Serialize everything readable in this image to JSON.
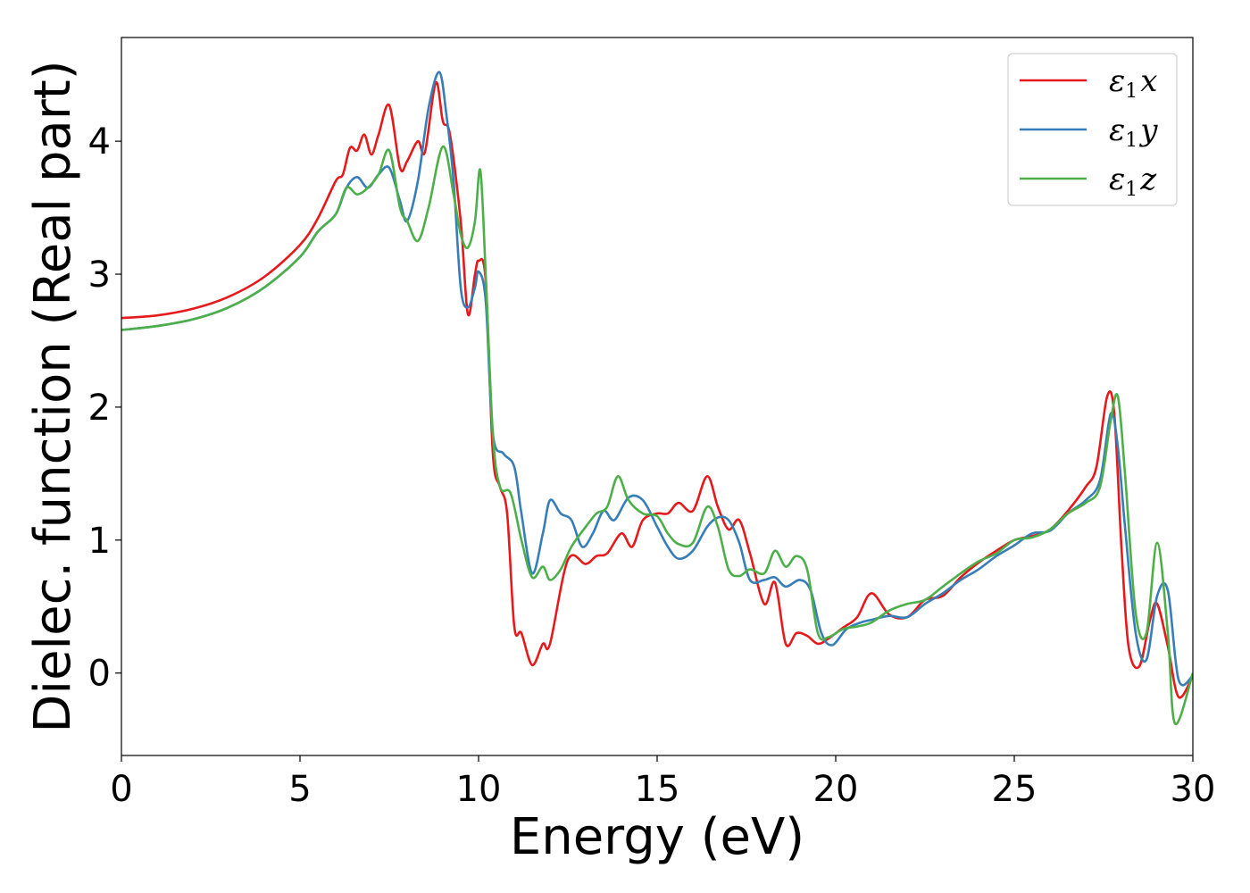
{
  "chart_data": {
    "type": "line",
    "title": "",
    "xlabel": "Energy (eV)",
    "ylabel": "Dielec. function (Real part)",
    "xlim": [
      0,
      30
    ],
    "ylim": [
      -0.62,
      4.78
    ],
    "xticks": [
      0,
      5,
      10,
      15,
      20,
      25,
      30
    ],
    "xtick_labels": [
      "0",
      "5",
      "10",
      "15",
      "20",
      "25",
      "30"
    ],
    "yticks": [
      0,
      1,
      2,
      3,
      4
    ],
    "ytick_labels": [
      "0",
      "1",
      "2",
      "3",
      "4"
    ],
    "grid": false,
    "legend_position": "top-right",
    "series": [
      {
        "name": "ε1x",
        "legend_base": "ε",
        "legend_sub": "1",
        "legend_var": "x",
        "color": "#e41a1c",
        "x": [
          0,
          1,
          2,
          3,
          4,
          5,
          5.5,
          6,
          6.2,
          6.4,
          6.6,
          6.8,
          7.0,
          7.2,
          7.5,
          7.8,
          8.0,
          8.3,
          8.5,
          8.8,
          9.0,
          9.2,
          9.5,
          9.7,
          9.9,
          10.0,
          10.2,
          10.4,
          10.6,
          10.8,
          11.0,
          11.2,
          11.5,
          11.8,
          12.0,
          12.5,
          13.0,
          13.3,
          13.6,
          14.0,
          14.3,
          14.6,
          15.0,
          15.3,
          15.6,
          16.0,
          16.4,
          16.7,
          17.0,
          17.3,
          17.6,
          18.0,
          18.3,
          18.6,
          18.9,
          19.2,
          19.5,
          19.8,
          20.2,
          20.6,
          21.0,
          21.5,
          22.0,
          22.5,
          23.0,
          23.5,
          24.0,
          24.5,
          25.0,
          25.5,
          26.0,
          26.5,
          27.0,
          27.3,
          27.6,
          27.8,
          28.0,
          28.2,
          28.5,
          28.8,
          29.0,
          29.3,
          29.6,
          30
        ],
        "y": [
          2.67,
          2.69,
          2.74,
          2.83,
          2.98,
          3.22,
          3.42,
          3.7,
          3.75,
          3.95,
          3.93,
          4.05,
          3.9,
          4.05,
          4.27,
          3.8,
          3.85,
          4.0,
          3.92,
          4.44,
          4.15,
          4.05,
          3.4,
          2.7,
          3.0,
          3.1,
          2.95,
          1.65,
          1.4,
          1.2,
          0.35,
          0.3,
          0.06,
          0.22,
          0.22,
          0.85,
          0.82,
          0.88,
          0.9,
          1.05,
          0.95,
          1.15,
          1.2,
          1.2,
          1.28,
          1.22,
          1.48,
          1.25,
          1.08,
          1.15,
          0.9,
          0.52,
          0.68,
          0.22,
          0.3,
          0.28,
          0.22,
          0.26,
          0.34,
          0.42,
          0.6,
          0.44,
          0.42,
          0.55,
          0.58,
          0.72,
          0.83,
          0.92,
          1.0,
          1.03,
          1.08,
          1.22,
          1.4,
          1.55,
          2.08,
          1.95,
          0.95,
          0.2,
          0.05,
          0.4,
          0.52,
          0.2,
          -0.18,
          -0.02
        ]
      },
      {
        "name": "ε1y",
        "legend_base": "ε",
        "legend_sub": "1",
        "legend_var": "y",
        "color": "#377eb8",
        "x": [
          0,
          1,
          2,
          3,
          4,
          5,
          5.5,
          6,
          6.3,
          6.6,
          6.9,
          7.2,
          7.5,
          7.8,
          8.0,
          8.3,
          8.6,
          8.9,
          9.1,
          9.3,
          9.5,
          9.7,
          9.9,
          10.0,
          10.2,
          10.4,
          10.7,
          11.0,
          11.2,
          11.5,
          11.8,
          12.0,
          12.3,
          12.6,
          12.9,
          13.2,
          13.5,
          13.8,
          14.2,
          14.6,
          15.0,
          15.3,
          15.6,
          16.0,
          16.4,
          16.7,
          17.0,
          17.3,
          17.6,
          18.0,
          18.3,
          18.6,
          19.0,
          19.3,
          19.6,
          19.9,
          20.3,
          20.7,
          21.0,
          21.5,
          22.0,
          22.5,
          23.0,
          23.5,
          24.0,
          24.5,
          25.0,
          25.5,
          26.0,
          26.5,
          27.0,
          27.4,
          27.7,
          27.9,
          28.1,
          28.4,
          28.7,
          29.0,
          29.3,
          29.6,
          30
        ],
        "y": [
          2.58,
          2.61,
          2.66,
          2.75,
          2.9,
          3.13,
          3.32,
          3.45,
          3.65,
          3.73,
          3.65,
          3.75,
          3.8,
          3.55,
          3.4,
          3.7,
          4.25,
          4.52,
          4.2,
          3.7,
          2.9,
          2.75,
          2.9,
          3.02,
          2.8,
          1.8,
          1.65,
          1.55,
          1.2,
          0.75,
          1.05,
          1.3,
          1.2,
          1.15,
          0.95,
          1.05,
          1.22,
          1.15,
          1.32,
          1.3,
          1.1,
          0.95,
          0.86,
          0.92,
          1.1,
          1.17,
          1.15,
          0.98,
          0.7,
          0.7,
          0.72,
          0.65,
          0.7,
          0.62,
          0.3,
          0.21,
          0.33,
          0.38,
          0.4,
          0.43,
          0.42,
          0.52,
          0.6,
          0.7,
          0.78,
          0.88,
          0.96,
          1.05,
          1.07,
          1.2,
          1.3,
          1.45,
          1.95,
          1.7,
          1.1,
          0.3,
          0.1,
          0.58,
          0.62,
          -0.05,
          -0.02
        ]
      },
      {
        "name": "ε1z",
        "legend_base": "ε",
        "legend_sub": "1",
        "legend_var": "z",
        "color": "#4daf4a",
        "x": [
          0,
          1,
          2,
          3,
          4,
          5,
          5.5,
          6,
          6.3,
          6.6,
          6.9,
          7.2,
          7.5,
          7.8,
          8.0,
          8.3,
          8.6,
          9.0,
          9.3,
          9.5,
          9.7,
          9.9,
          10.05,
          10.2,
          10.4,
          10.6,
          10.9,
          11.2,
          11.5,
          11.8,
          12.0,
          12.3,
          12.6,
          13.0,
          13.3,
          13.6,
          13.9,
          14.2,
          14.6,
          15.0,
          15.3,
          15.6,
          16.0,
          16.4,
          16.7,
          17.0,
          17.3,
          17.6,
          18.0,
          18.3,
          18.6,
          18.9,
          19.2,
          19.5,
          19.8,
          20.2,
          20.6,
          21.0,
          21.5,
          22.0,
          22.5,
          23.0,
          23.5,
          24.0,
          24.5,
          25.0,
          25.5,
          26.0,
          26.5,
          27.0,
          27.4,
          27.7,
          27.9,
          28.1,
          28.4,
          28.7,
          29.0,
          29.3,
          29.5,
          30
        ],
        "y": [
          2.58,
          2.61,
          2.66,
          2.75,
          2.9,
          3.13,
          3.32,
          3.45,
          3.65,
          3.6,
          3.65,
          3.75,
          3.93,
          3.5,
          3.4,
          3.25,
          3.5,
          3.96,
          3.6,
          3.3,
          3.2,
          3.4,
          3.78,
          3.0,
          1.8,
          1.4,
          1.35,
          1.0,
          0.72,
          0.8,
          0.7,
          0.78,
          0.95,
          1.1,
          1.2,
          1.25,
          1.48,
          1.3,
          1.2,
          1.18,
          1.05,
          0.97,
          0.98,
          1.25,
          1.1,
          0.78,
          0.73,
          0.78,
          0.75,
          0.92,
          0.8,
          0.88,
          0.78,
          0.3,
          0.27,
          0.33,
          0.35,
          0.38,
          0.47,
          0.52,
          0.55,
          0.65,
          0.75,
          0.84,
          0.9,
          1.0,
          1.02,
          1.08,
          1.2,
          1.28,
          1.4,
          1.9,
          2.08,
          1.5,
          0.45,
          0.3,
          0.98,
          0.3,
          -0.38,
          0.0
        ]
      }
    ]
  }
}
